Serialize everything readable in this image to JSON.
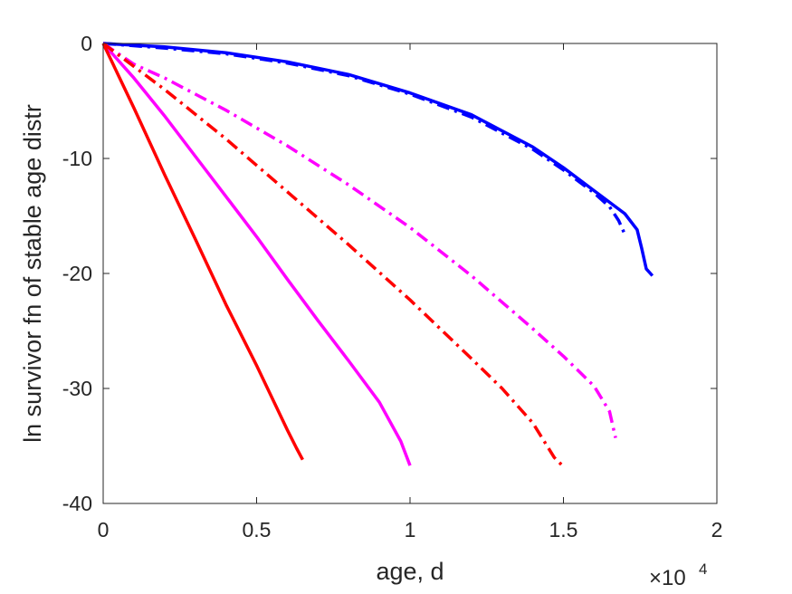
{
  "chart_data": {
    "type": "line",
    "title": "",
    "xlabel": "age, d",
    "ylabel": "ln survivor fn of stable age distr",
    "x_exponent_label": {
      "base": "×10",
      "exponent": "4"
    },
    "xlim": [
      0,
      20000
    ],
    "ylim": [
      -40,
      0
    ],
    "xticks": [
      0,
      5000,
      10000,
      15000,
      20000
    ],
    "xtick_labels": [
      "0",
      "0.5",
      "1",
      "1.5",
      "2"
    ],
    "yticks": [
      0,
      -10,
      -20,
      -30,
      -40
    ],
    "ytick_labels": [
      "0",
      "-10",
      "-20",
      "-30",
      "-40"
    ],
    "grid": false,
    "legend": "none",
    "series": [
      {
        "color": "#0000ff",
        "style": "solid",
        "x": [
          0,
          2000,
          4000,
          6000,
          8000,
          10000,
          12000,
          14000,
          15000,
          16000,
          17000,
          17400,
          17550,
          17700,
          17900
        ],
        "y": [
          0,
          -0.3,
          -0.8,
          -1.6,
          -2.7,
          -4.3,
          -6.2,
          -9.0,
          -10.8,
          -12.8,
          -14.8,
          -16.2,
          -17.8,
          -19.6,
          -20.2
        ]
      },
      {
        "color": "#0000ff",
        "style": "dashdot",
        "x": [
          0,
          2000,
          4000,
          6000,
          8000,
          10000,
          12000,
          14000,
          15000,
          16000,
          16500,
          16800,
          17000
        ],
        "y": [
          0,
          -0.4,
          -0.9,
          -1.7,
          -2.8,
          -4.4,
          -6.4,
          -9.2,
          -11.0,
          -13.0,
          -14.2,
          -15.4,
          -16.6
        ]
      },
      {
        "color": "#ff00ff",
        "style": "solid",
        "x": [
          0,
          1000,
          2000,
          3000,
          4000,
          5000,
          6000,
          7000,
          8000,
          9000,
          9700,
          10000
        ],
        "y": [
          0,
          -3.0,
          -6.3,
          -9.8,
          -13.3,
          -16.8,
          -20.5,
          -24.1,
          -27.6,
          -31.2,
          -34.6,
          -36.7
        ]
      },
      {
        "color": "#ff00ff",
        "style": "dashdot",
        "x": [
          0,
          1000,
          2000,
          4000,
          6000,
          8000,
          10000,
          12000,
          14000,
          15000,
          16000,
          16500,
          16700
        ],
        "y": [
          0,
          -1.8,
          -3.0,
          -5.8,
          -8.9,
          -12.3,
          -16.0,
          -20.2,
          -24.8,
          -27.2,
          -29.8,
          -32.0,
          -34.3
        ]
      },
      {
        "color": "#ff0000",
        "style": "solid",
        "x": [
          0,
          1000,
          2000,
          3000,
          4000,
          5000,
          6000,
          6300,
          6500
        ],
        "y": [
          0,
          -5.6,
          -11.4,
          -17.0,
          -22.7,
          -28.0,
          -33.6,
          -35.2,
          -36.2
        ]
      },
      {
        "color": "#ff0000",
        "style": "dashdot",
        "x": [
          0,
          1000,
          2000,
          4000,
          6000,
          8000,
          10000,
          12000,
          13000,
          14000,
          14700,
          15000
        ],
        "y": [
          0,
          -2.0,
          -4.0,
          -8.3,
          -12.9,
          -17.5,
          -22.3,
          -27.4,
          -30.0,
          -33.0,
          -36.0,
          -36.8
        ]
      }
    ]
  }
}
